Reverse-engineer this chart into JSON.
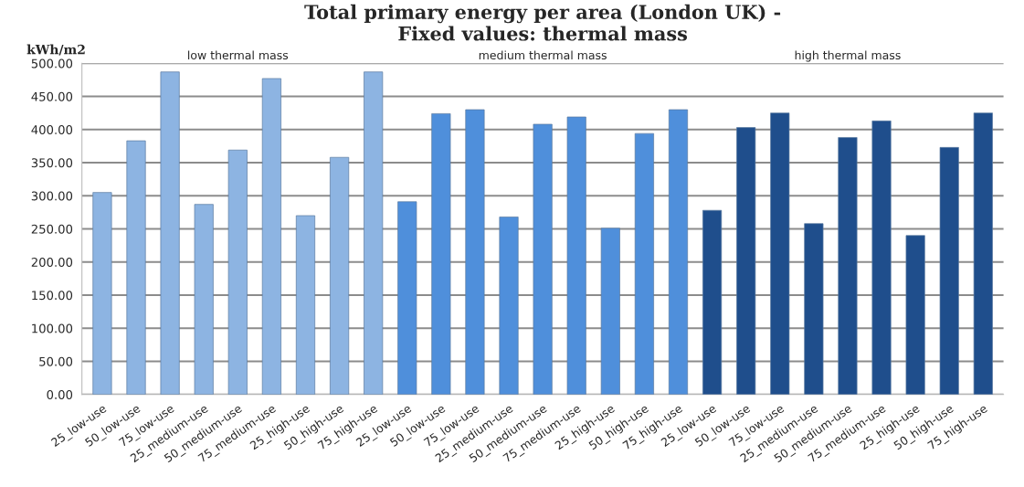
{
  "chart_data": {
    "type": "bar",
    "title": "Total primary energy per area (London UK) -\nFixed values: thermal mass",
    "ylabel": "kWh/m2",
    "categories": [
      "25_low-use",
      "50_low-use",
      "75_low-use",
      "25_medium-use",
      "50_medium-use",
      "75_medium-use",
      "25_high-use",
      "50_high-use",
      "75_high-use",
      "25_low-use",
      "50_low-use",
      "75_low-use",
      "25_medium-use",
      "50_medium-use",
      "75_medium-use",
      "25_high-use",
      "50_high-use",
      "75_high-use",
      "25_low-use",
      "50_low-use",
      "75_low-use",
      "25_medium-use",
      "50_medium-use",
      "75_medium-use",
      "25_high-use",
      "50_high-use",
      "75_high-use"
    ],
    "values": [
      305,
      383,
      487,
      287,
      369,
      477,
      270,
      358,
      487,
      291,
      424,
      430,
      268,
      408,
      419,
      251,
      394,
      430,
      278,
      403,
      425,
      258,
      388,
      413,
      240,
      373,
      425
    ],
    "colors": [
      "#8db4e2",
      "#8db4e2",
      "#8db4e2",
      "#8db4e2",
      "#8db4e2",
      "#8db4e2",
      "#8db4e2",
      "#8db4e2",
      "#8db4e2",
      "#4f8fdb",
      "#4f8fdb",
      "#4f8fdb",
      "#4f8fdb",
      "#4f8fdb",
      "#4f8fdb",
      "#4f8fdb",
      "#4f8fdb",
      "#4f8fdb",
      "#1f4e8c",
      "#1f4e8c",
      "#1f4e8c",
      "#1f4e8c",
      "#1f4e8c",
      "#1f4e8c",
      "#1f4e8c",
      "#1f4e8c",
      "#1f4e8c"
    ],
    "ylim": [
      0,
      500
    ],
    "yticks": [
      {
        "value": 0,
        "label": "0.00"
      },
      {
        "value": 50,
        "label": "50.00"
      },
      {
        "value": 100,
        "label": "100.00"
      },
      {
        "value": 150,
        "label": "150.00"
      },
      {
        "value": 200,
        "label": "200.00"
      },
      {
        "value": 250,
        "label": "250.00"
      },
      {
        "value": 300,
        "label": "300.00"
      },
      {
        "value": 350,
        "label": "350.00"
      },
      {
        "value": 400,
        "label": "400.00"
      },
      {
        "value": 450,
        "label": "450.00"
      },
      {
        "value": 500,
        "label": "500.00"
      }
    ],
    "grid": "y",
    "annotations": [
      "low thermal mass",
      "medium thermal mass",
      "high thermal mass"
    ]
  }
}
